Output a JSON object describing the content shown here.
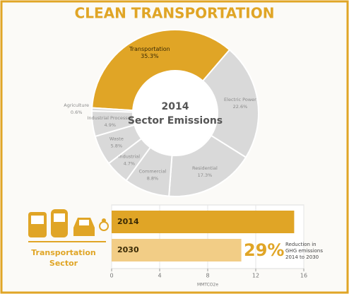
{
  "title": "CLEAN TRANSPORTATION",
  "chart_data": [
    {
      "type": "donut",
      "center_text": [
        "2014",
        "Sector Emissions"
      ],
      "categories": [
        "Transportation",
        "Electric Power",
        "Residential",
        "Commercial",
        "Industrial",
        "Waste",
        "Industrial Processes",
        "Agriculture"
      ],
      "values": [
        35.3,
        22.6,
        17.3,
        8.8,
        4.7,
        5.8,
        4.9,
        0.6
      ],
      "value_labels": [
        "35.3%",
        "22.6%",
        "17.3%",
        "8.8%",
        "4.7%",
        "5.8%",
        "4.9%",
        "0.6%"
      ],
      "colors": [
        "#e0a526",
        "#d9d9d9",
        "#d9d9d9",
        "#d9d9d9",
        "#d9d9d9",
        "#d9d9d9",
        "#d9d9d9",
        "#d9d9d9"
      ]
    },
    {
      "type": "hbar",
      "side_label": [
        "Transportation",
        "Sector"
      ],
      "categories": [
        "2014",
        "2030"
      ],
      "values": [
        15.2,
        10.8
      ],
      "colors": [
        "#e0a526",
        "#f2cd86"
      ],
      "xlim": [
        0,
        16
      ],
      "xticks": [
        0,
        4,
        8,
        12,
        16
      ],
      "xlabel": "MMTCO2e",
      "annotation": "29%",
      "annotation_note": [
        "Reduction in",
        "GHG emissions",
        "2014 to 2030"
      ]
    }
  ]
}
